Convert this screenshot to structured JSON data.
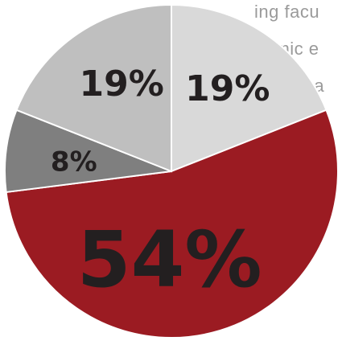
{
  "background_text": {
    "lines": [
      "ing facu",
      "demic e",
      "impact a"
    ],
    "color": "#9a9a9a"
  },
  "chart_data": {
    "type": "pie",
    "slices": [
      {
        "label": "19%",
        "value": 19,
        "color": "#d9d9d9"
      },
      {
        "label": "54%",
        "value": 54,
        "color": "#9b1b22"
      },
      {
        "label": "8%",
        "value": 8,
        "color": "#7f7f7f"
      },
      {
        "label": "19%",
        "value": 19,
        "color": "#bfbfbf"
      }
    ],
    "label_color": "#231f20",
    "start": "top",
    "direction": "clockwise"
  }
}
